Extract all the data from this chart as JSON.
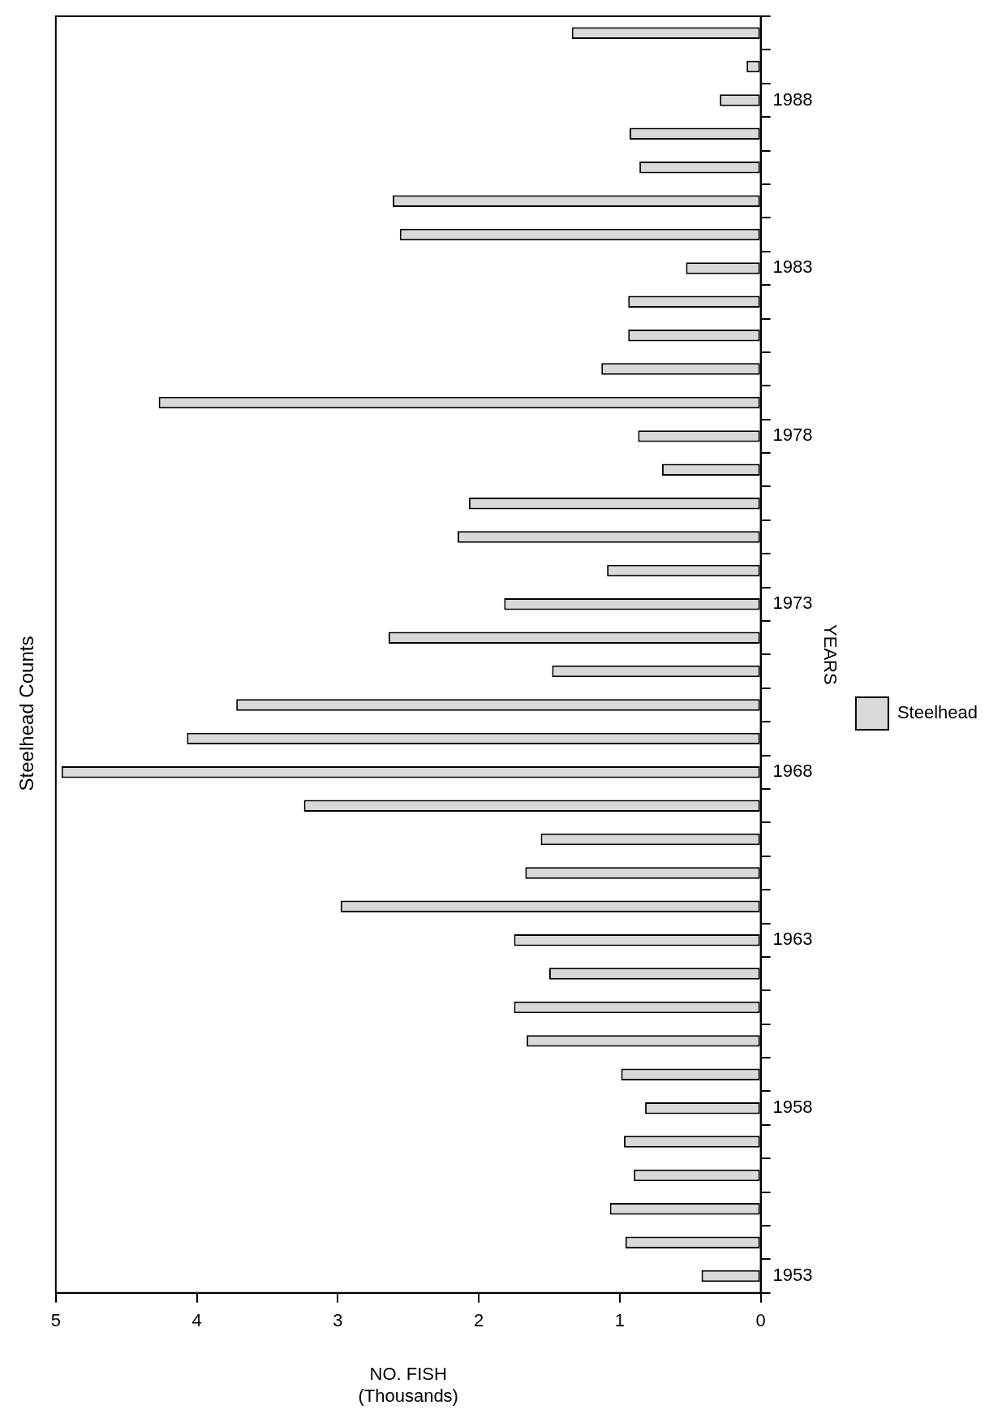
{
  "chart_data": {
    "type": "bar",
    "orientation": "horizontal",
    "title": "Steelhead Counts",
    "xlabel": "NO. FISH\n(Thousands)",
    "ylabel": "YEARS",
    "categories": [
      null,
      null,
      "1988",
      null,
      null,
      null,
      null,
      "1983",
      null,
      null,
      null,
      null,
      "1978",
      null,
      null,
      null,
      null,
      "1973",
      null,
      null,
      null,
      null,
      "1968",
      null,
      null,
      null,
      null,
      "1963",
      null,
      null,
      null,
      null,
      "1958",
      null,
      null,
      null,
      null,
      "1953"
    ],
    "series": [
      {
        "name": "Steelhead",
        "color": "#d9d9d9",
        "values": [
          1.34,
          0.1,
          0.29,
          0.93,
          0.86,
          2.61,
          2.56,
          0.53,
          0.94,
          0.94,
          1.13,
          4.27,
          0.87,
          0.7,
          2.07,
          2.15,
          1.09,
          1.82,
          2.64,
          1.48,
          3.72,
          4.07,
          4.96,
          3.24,
          1.56,
          1.67,
          2.98,
          1.75,
          1.5,
          1.75,
          1.66,
          0.99,
          0.82,
          0.97,
          0.9,
          1.07,
          0.96,
          0.42
        ]
      }
    ],
    "xlim": [
      5,
      0
    ],
    "xticks": [
      5,
      4,
      3,
      2,
      1,
      0
    ],
    "grid": false,
    "legend": "right"
  }
}
